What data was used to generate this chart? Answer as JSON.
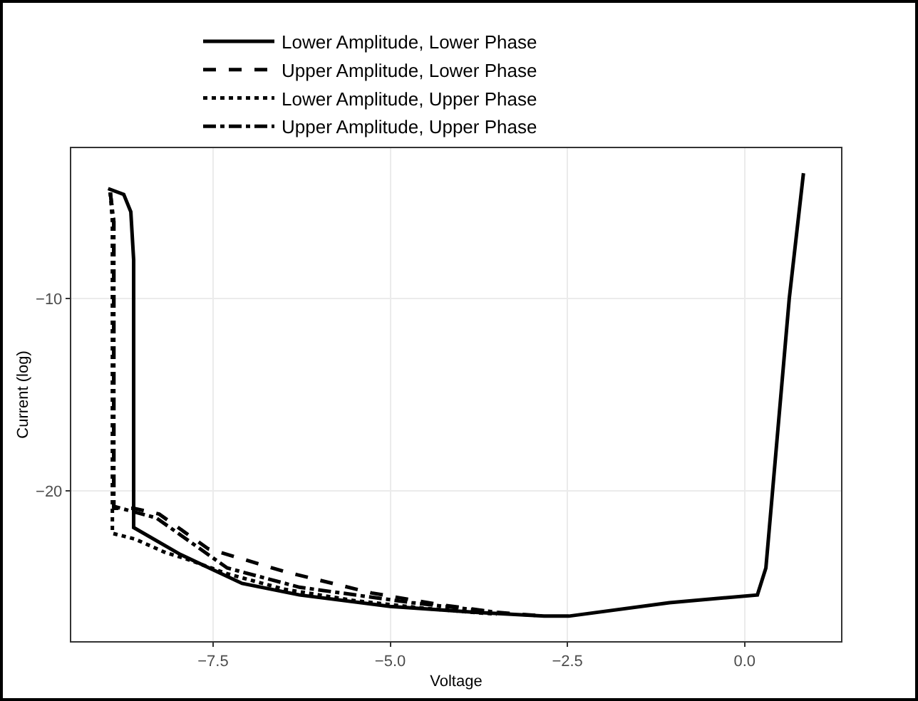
{
  "chart_data": {
    "type": "line",
    "xlabel": "Voltage",
    "ylabel": "Current (log)",
    "xlim": [
      -9.5,
      1.36
    ],
    "ylim": [
      -27.8,
      -2.2
    ],
    "xticks": [
      {
        "value": -7.5,
        "label": "−7.5"
      },
      {
        "value": -5,
        "label": "−5.0"
      },
      {
        "value": -2.5,
        "label": "−2.5"
      },
      {
        "value": 0,
        "label": "0.0"
      }
    ],
    "yticks": [
      {
        "value": -10,
        "label": "−10"
      },
      {
        "value": -20,
        "label": "−20"
      }
    ],
    "grid": true,
    "legend": "top",
    "marker": "none",
    "series": [
      {
        "name": "Lower Amplitude, Lower Phase",
        "color": "#000000",
        "line_style": "solid",
        "x": [
          -8.98,
          -8.76,
          -8.66,
          -8.62,
          -8.62,
          -8.62,
          -7.96,
          -7.09,
          -6.28,
          -5.0,
          -3.8,
          -2.83,
          -2.48,
          -1.06,
          0.18,
          0.3,
          0.63,
          0.83
        ],
        "values": [
          -4.3,
          -4.6,
          -5.5,
          -8,
          -15,
          -21.9,
          -23.3,
          -24.8,
          -25.4,
          -26.0,
          -26.3,
          -26.5,
          -26.5,
          -25.8,
          -25.4,
          -24,
          -10,
          -3.5
        ]
      },
      {
        "name": "Upper Amplitude, Lower Phase",
        "color": "#000000",
        "line_style": "dashed",
        "x": [
          -8.95,
          -8.9,
          -8.9,
          -8.9,
          -8.62,
          -8.26,
          -7.57,
          -6.48,
          -5.26,
          -4.31,
          -3.5,
          -2.83
        ],
        "values": [
          -4.5,
          -6,
          -15,
          -20.9,
          -20.9,
          -21.2,
          -23.0,
          -24.2,
          -25.3,
          -25.9,
          -26.3,
          -26.5
        ]
      },
      {
        "name": "Lower Amplitude, Upper Phase",
        "color": "#000000",
        "line_style": "dotted",
        "x": [
          -8.95,
          -8.92,
          -8.92,
          -8.92,
          -8.6,
          -8.17,
          -7.9,
          -7.3,
          -6.5,
          -5.5,
          -4.5,
          -3.5
        ],
        "values": [
          -4.5,
          -6,
          -15,
          -22.2,
          -22.5,
          -23.2,
          -23.5,
          -24.3,
          -25.1,
          -25.7,
          -26.1,
          -26.4
        ]
      },
      {
        "name": "Upper Amplitude, Upper Phase",
        "color": "#000000",
        "line_style": "dashdot",
        "x": [
          -8.95,
          -8.9,
          -8.9,
          -8.9,
          -8.3,
          -7.3,
          -6.28,
          -4.7,
          -3.5
        ],
        "values": [
          -4.5,
          -6,
          -15,
          -20.8,
          -21.4,
          -24.0,
          -25.0,
          -25.8,
          -26.3
        ]
      }
    ]
  }
}
